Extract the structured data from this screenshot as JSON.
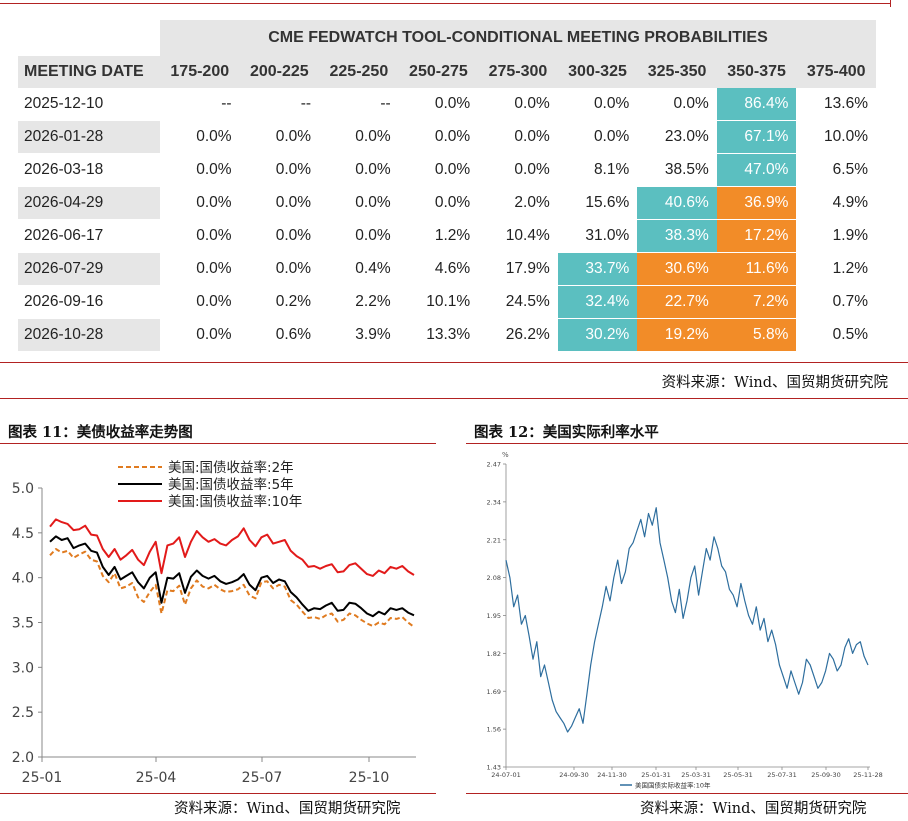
{
  "fedwatch": {
    "title": "CME FEDWATCH TOOL-CONDITIONAL MEETING PROBABILITIES",
    "date_header": "MEETING DATE",
    "columns": [
      "175-200",
      "200-225",
      "225-250",
      "250-275",
      "275-300",
      "300-325",
      "325-350",
      "350-375",
      "375-400"
    ],
    "rows": [
      {
        "date": "2025-12-10",
        "values": [
          "--",
          "--",
          "--",
          "0.0%",
          "0.0%",
          "0.0%",
          "0.0%",
          "86.4%",
          "13.6%"
        ],
        "highlight": [
          "",
          "",
          "",
          "",
          "",
          "",
          "",
          "teal",
          ""
        ]
      },
      {
        "date": "2026-01-28",
        "values": [
          "0.0%",
          "0.0%",
          "0.0%",
          "0.0%",
          "0.0%",
          "0.0%",
          "23.0%",
          "67.1%",
          "10.0%"
        ],
        "highlight": [
          "",
          "",
          "",
          "",
          "",
          "",
          "",
          "teal",
          ""
        ]
      },
      {
        "date": "2026-03-18",
        "values": [
          "0.0%",
          "0.0%",
          "0.0%",
          "0.0%",
          "0.0%",
          "8.1%",
          "38.5%",
          "47.0%",
          "6.5%"
        ],
        "highlight": [
          "",
          "",
          "",
          "",
          "",
          "",
          "",
          "teal",
          ""
        ]
      },
      {
        "date": "2026-04-29",
        "values": [
          "0.0%",
          "0.0%",
          "0.0%",
          "0.0%",
          "2.0%",
          "15.6%",
          "40.6%",
          "36.9%",
          "4.9%"
        ],
        "highlight": [
          "",
          "",
          "",
          "",
          "",
          "",
          "teal",
          "orange",
          ""
        ]
      },
      {
        "date": "2026-06-17",
        "values": [
          "0.0%",
          "0.0%",
          "0.0%",
          "1.2%",
          "10.4%",
          "31.0%",
          "38.3%",
          "17.2%",
          "1.9%"
        ],
        "highlight": [
          "",
          "",
          "",
          "",
          "",
          "",
          "teal",
          "orange",
          ""
        ]
      },
      {
        "date": "2026-07-29",
        "values": [
          "0.0%",
          "0.0%",
          "0.4%",
          "4.6%",
          "17.9%",
          "33.7%",
          "30.6%",
          "11.6%",
          "1.2%"
        ],
        "highlight": [
          "",
          "",
          "",
          "",
          "",
          "teal",
          "orange",
          "orange",
          ""
        ]
      },
      {
        "date": "2026-09-16",
        "values": [
          "0.0%",
          "0.2%",
          "2.2%",
          "10.1%",
          "24.5%",
          "32.4%",
          "22.7%",
          "7.2%",
          "0.7%"
        ],
        "highlight": [
          "",
          "",
          "",
          "",
          "",
          "teal",
          "orange",
          "orange",
          ""
        ]
      },
      {
        "date": "2026-10-28",
        "values": [
          "0.0%",
          "0.6%",
          "3.9%",
          "13.3%",
          "26.2%",
          "30.2%",
          "19.2%",
          "5.8%",
          "0.5%"
        ],
        "highlight": [
          "",
          "",
          "",
          "",
          "",
          "teal",
          "orange",
          "orange",
          ""
        ]
      }
    ],
    "source": "资料来源：Wind、国贸期货研究院"
  },
  "chart_data": [
    {
      "type": "line",
      "figure_title": "图表 11：美债收益率走势图",
      "title": "",
      "x_ticks": [
        "25-01",
        "25-04",
        "25-07",
        "25-10"
      ],
      "ylim": [
        2.0,
        5.0
      ],
      "y_ticks": [
        "2.0",
        "2.5",
        "3.0",
        "3.5",
        "4.0",
        "4.5",
        "5.0"
      ],
      "legend_position": "top-left",
      "series": [
        {
          "name": "美国:国债收益率:2年",
          "color": "#e07b20",
          "dash": "dashed",
          "values": [
            4.25,
            4.32,
            4.28,
            4.3,
            4.22,
            4.26,
            4.29,
            4.2,
            4.18,
            4.02,
            3.95,
            4.05,
            3.88,
            3.9,
            3.94,
            3.78,
            3.73,
            3.84,
            3.92,
            3.6,
            3.86,
            3.85,
            3.91,
            3.7,
            3.88,
            3.97,
            3.9,
            3.88,
            3.92,
            3.87,
            3.84,
            3.85,
            3.87,
            3.92,
            3.8,
            3.77,
            3.95,
            3.96,
            3.88,
            3.92,
            3.9,
            3.75,
            3.7,
            3.62,
            3.55,
            3.56,
            3.54,
            3.58,
            3.6,
            3.51,
            3.53,
            3.6,
            3.58,
            3.53,
            3.49,
            3.46,
            3.5,
            3.48,
            3.55,
            3.54,
            3.56,
            3.5,
            3.45
          ]
        },
        {
          "name": "美国:国债收益率:5年",
          "color": "#000000",
          "dash": "solid",
          "values": [
            4.4,
            4.46,
            4.42,
            4.44,
            4.33,
            4.36,
            4.38,
            4.3,
            4.28,
            4.12,
            4.03,
            4.12,
            3.98,
            4.02,
            4.06,
            3.95,
            3.88,
            4.0,
            4.06,
            3.72,
            4.0,
            3.99,
            4.05,
            3.83,
            4.01,
            4.08,
            4.02,
            3.99,
            4.02,
            3.96,
            3.93,
            3.95,
            3.98,
            4.04,
            3.92,
            3.86,
            4.0,
            4.02,
            3.94,
            3.98,
            3.96,
            3.84,
            3.78,
            3.7,
            3.63,
            3.66,
            3.65,
            3.69,
            3.72,
            3.63,
            3.64,
            3.72,
            3.71,
            3.66,
            3.6,
            3.57,
            3.62,
            3.59,
            3.66,
            3.64,
            3.66,
            3.61,
            3.58
          ]
        },
        {
          "name": "美国:国债收益率:10年",
          "color": "#e21a1a",
          "dash": "solid",
          "values": [
            4.57,
            4.65,
            4.62,
            4.6,
            4.53,
            4.54,
            4.58,
            4.48,
            4.47,
            4.32,
            4.23,
            4.32,
            4.2,
            4.25,
            4.31,
            4.2,
            4.14,
            4.29,
            4.4,
            4.05,
            4.36,
            4.38,
            4.45,
            4.23,
            4.4,
            4.52,
            4.45,
            4.4,
            4.43,
            4.38,
            4.36,
            4.42,
            4.46,
            4.55,
            4.42,
            4.35,
            4.45,
            4.48,
            4.38,
            4.4,
            4.42,
            4.3,
            4.24,
            4.2,
            4.12,
            4.13,
            4.1,
            4.13,
            4.15,
            4.06,
            4.07,
            4.14,
            4.16,
            4.1,
            4.04,
            4.02,
            4.08,
            4.05,
            4.12,
            4.1,
            4.13,
            4.07,
            4.03
          ]
        }
      ],
      "source": "资料来源：Wind、国贸期货研究院"
    },
    {
      "type": "line",
      "figure_title": "图表 12：美国实际利率水平",
      "title": "",
      "ylabel": "%",
      "ylim": [
        1.43,
        2.47
      ],
      "y_ticks": [
        "2.47",
        "2.34",
        "2.21",
        "2.08",
        "1.95",
        "1.82",
        "1.69",
        "1.56",
        "1.43"
      ],
      "x_ticks": [
        "24-07-01",
        "24-09-30",
        "24-11-30",
        "25-01-31",
        "25-03-31",
        "25-05-31",
        "25-07-31",
        "25-09-30",
        "25-11-28"
      ],
      "legend_position": "bottom-left",
      "series": [
        {
          "name": "美国国债实际收益率:10年",
          "color": "#2e6e9e",
          "dash": "solid",
          "values": [
            2.14,
            2.08,
            1.98,
            2.02,
            1.92,
            1.95,
            1.88,
            1.8,
            1.86,
            1.74,
            1.78,
            1.72,
            1.66,
            1.62,
            1.6,
            1.58,
            1.55,
            1.57,
            1.6,
            1.63,
            1.58,
            1.68,
            1.78,
            1.86,
            1.92,
            1.98,
            2.05,
            2.0,
            2.08,
            2.14,
            2.06,
            2.1,
            2.18,
            2.2,
            2.24,
            2.28,
            2.22,
            2.3,
            2.26,
            2.32,
            2.2,
            2.14,
            2.08,
            2.0,
            1.96,
            2.04,
            1.94,
            2.0,
            2.08,
            2.12,
            2.02,
            2.1,
            2.18,
            2.14,
            2.22,
            2.18,
            2.12,
            2.1,
            2.04,
            2.02,
            1.98,
            2.06,
            2.0,
            1.95,
            1.92,
            1.98,
            1.9,
            1.94,
            1.86,
            1.9,
            1.85,
            1.78,
            1.74,
            1.7,
            1.76,
            1.72,
            1.68,
            1.72,
            1.8,
            1.78,
            1.74,
            1.7,
            1.72,
            1.76,
            1.82,
            1.8,
            1.76,
            1.78,
            1.84,
            1.87,
            1.82,
            1.85,
            1.86,
            1.81,
            1.78
          ]
        }
      ],
      "source": "资料来源：Wind、国贸期货研究院"
    }
  ],
  "colors": {
    "teal": "#5bbfc0",
    "orange": "#f28c28",
    "rule": "#b22222",
    "header_bg": "#e6e6e6"
  }
}
